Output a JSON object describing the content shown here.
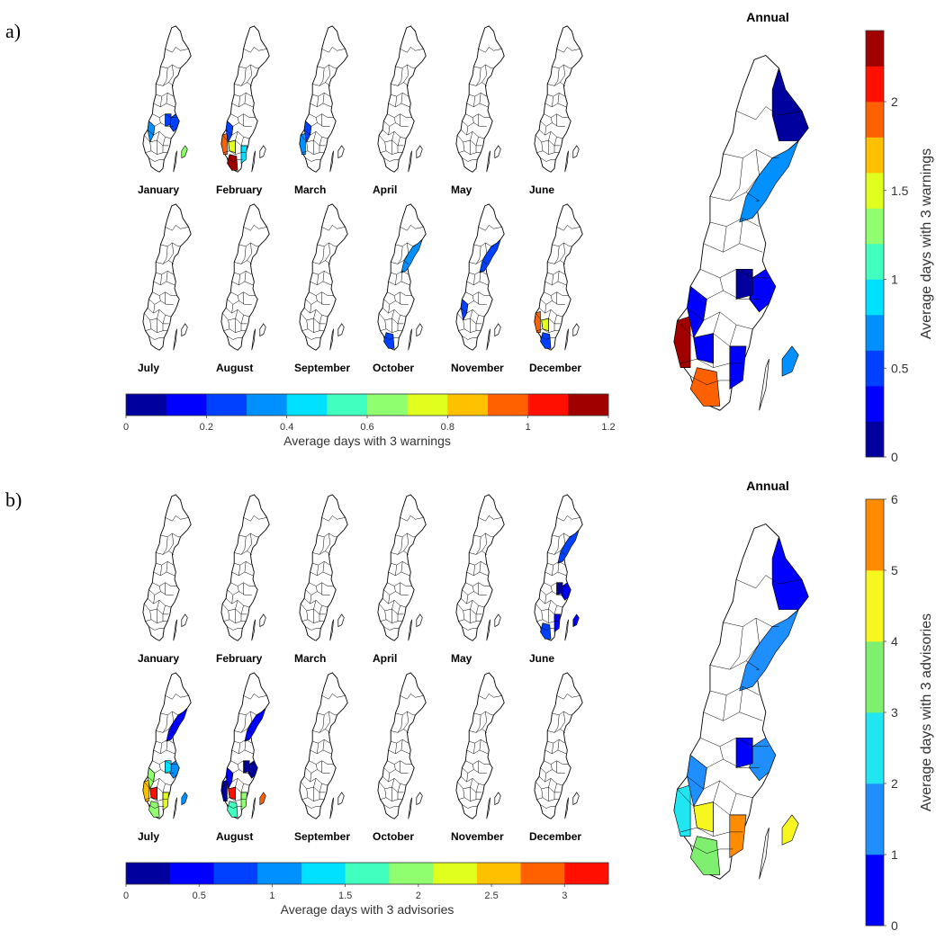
{
  "panels": [
    {
      "id": "a",
      "label": "a)",
      "months": [
        {
          "name": "January",
          "fills": [
            {
              "r": "mid",
              "v": 0.2
            },
            {
              "r": "east",
              "v": 0.2
            },
            {
              "r": "sw",
              "v": 0.3
            },
            {
              "r": "gotland",
              "v": 0.6
            }
          ]
        },
        {
          "name": "February",
          "fills": [
            {
              "r": "west",
              "v": 0.9
            },
            {
              "r": "sw",
              "v": 0.2
            },
            {
              "r": "south",
              "v": 1.2
            },
            {
              "r": "swc",
              "v": 0.7
            },
            {
              "r": "se",
              "v": 0.4
            }
          ]
        },
        {
          "name": "March",
          "fills": [
            {
              "r": "west",
              "v": 0.3
            },
            {
              "r": "sw",
              "v": 0.2
            }
          ]
        },
        {
          "name": "April",
          "fills": []
        },
        {
          "name": "May",
          "fills": []
        },
        {
          "name": "June",
          "fills": []
        },
        {
          "name": "July",
          "fills": []
        },
        {
          "name": "August",
          "fills": []
        },
        {
          "name": "September",
          "fills": []
        },
        {
          "name": "October",
          "fills": [
            {
              "r": "coast",
              "v": 0.3
            },
            {
              "r": "south",
              "v": 0.2
            }
          ]
        },
        {
          "name": "November",
          "fills": [
            {
              "r": "coast",
              "v": 0.2
            },
            {
              "r": "sw",
              "v": 0.2
            }
          ]
        },
        {
          "name": "December",
          "fills": [
            {
              "r": "west",
              "v": 0.9
            },
            {
              "r": "swc",
              "v": 0.7
            },
            {
              "r": "south",
              "v": 0.2
            }
          ]
        }
      ],
      "colorbar": {
        "ticks": [
          "0",
          "0.2",
          "0.4",
          "0.6",
          "0.8",
          "1",
          "1.2"
        ],
        "label": "Average days with 3 warnings",
        "max": 1.2,
        "n": 12
      },
      "annual": {
        "title": "Annual",
        "fills": [
          {
            "r": "coast",
            "v": 0.7
          },
          {
            "r": "ne",
            "v": 0.1
          },
          {
            "r": "east",
            "v": 0.3
          },
          {
            "r": "mid",
            "v": 0.1
          },
          {
            "r": "west",
            "v": 2.3
          },
          {
            "r": "sw",
            "v": 0.2
          },
          {
            "r": "south",
            "v": 1.8
          },
          {
            "r": "swc",
            "v": 0.2
          },
          {
            "r": "se",
            "v": 0.3
          },
          {
            "r": "gotland",
            "v": 0.6
          }
        ],
        "colorbar": {
          "ticks": [
            "0",
            "0.5",
            "1",
            "1.5",
            "2"
          ],
          "label": "Average days with 3 warnings",
          "max": 2.4,
          "n": 12
        }
      }
    },
    {
      "id": "b",
      "label": "b)",
      "months": [
        {
          "name": "January",
          "fills": []
        },
        {
          "name": "February",
          "fills": []
        },
        {
          "name": "March",
          "fills": []
        },
        {
          "name": "April",
          "fills": []
        },
        {
          "name": "May",
          "fills": []
        },
        {
          "name": "June",
          "fills": [
            {
              "r": "coast",
              "v": 0.6
            },
            {
              "r": "east",
              "v": 0.4
            },
            {
              "r": "mid",
              "v": 0.2
            },
            {
              "r": "se",
              "v": 0.5
            },
            {
              "r": "south",
              "v": 0.8
            },
            {
              "r": "gotland",
              "v": 0.5
            }
          ]
        },
        {
          "name": "July",
          "fills": [
            {
              "r": "coast",
              "v": 0.5
            },
            {
              "r": "east",
              "v": 1.0
            },
            {
              "r": "mid",
              "v": 1.3
            },
            {
              "r": "west",
              "v": 2.5
            },
            {
              "r": "sw",
              "v": 2.0
            },
            {
              "r": "south",
              "v": 1.8
            },
            {
              "r": "swc",
              "v": 3.1
            },
            {
              "r": "se",
              "v": 2.2
            },
            {
              "r": "gotland",
              "v": 1.0
            }
          ]
        },
        {
          "name": "August",
          "fills": [
            {
              "r": "coast",
              "v": 0.4
            },
            {
              "r": "east",
              "v": 0.2
            },
            {
              "r": "mid",
              "v": 0.1
            },
            {
              "r": "west",
              "v": 0.2
            },
            {
              "r": "sw",
              "v": 0.5
            },
            {
              "r": "south",
              "v": 1.6
            },
            {
              "r": "swc",
              "v": 3.1
            },
            {
              "r": "se",
              "v": 1.8
            },
            {
              "r": "gotland",
              "v": 2.8
            }
          ]
        },
        {
          "name": "September",
          "fills": []
        },
        {
          "name": "October",
          "fills": []
        },
        {
          "name": "November",
          "fills": []
        },
        {
          "name": "December",
          "fills": []
        }
      ],
      "colorbar": {
        "ticks": [
          "0",
          "0.5",
          "1",
          "1.5",
          "2",
          "2.5",
          "3"
        ],
        "label": "Average days with 3 advisories",
        "max": 3.3,
        "n": 11
      },
      "annual": {
        "title": "Annual",
        "fills": [
          {
            "r": "coast",
            "v": 1.0
          },
          {
            "r": "ne",
            "v": 0.6
          },
          {
            "r": "east",
            "v": 1.6
          },
          {
            "r": "mid",
            "v": 0.8
          },
          {
            "r": "west",
            "v": 2.4
          },
          {
            "r": "sw",
            "v": 1.8
          },
          {
            "r": "south",
            "v": 3.4
          },
          {
            "r": "swc",
            "v": 4.4
          },
          {
            "r": "se",
            "v": 5.4
          },
          {
            "r": "gotland",
            "v": 4.6
          }
        ],
        "colorbar": {
          "ticks": [
            "0",
            "1",
            "2",
            "3",
            "4",
            "5",
            "6"
          ],
          "label": "Average days with 3 advisories",
          "max": 6,
          "n": 6
        }
      }
    }
  ],
  "colors": {
    "jet12": [
      "#00009f",
      "#0000ff",
      "#0040ff",
      "#0090ff",
      "#00e0ff",
      "#40ffbf",
      "#90ff6f",
      "#e0ff1f",
      "#ffc000",
      "#ff6000",
      "#ff1000",
      "#a00000"
    ],
    "jet11": [
      "#00009f",
      "#0000ff",
      "#0040ff",
      "#0090ff",
      "#00e0ff",
      "#40ffbf",
      "#90ff6f",
      "#e0ff1f",
      "#ffc000",
      "#ff6000",
      "#ff1000"
    ],
    "b_annual6": [
      "#0000ff",
      "#1f8fff",
      "#1fe6f0",
      "#7fef6f",
      "#f7f71f",
      "#ff8c00"
    ],
    "outline": "#000000",
    "empty": "#ffffff"
  }
}
